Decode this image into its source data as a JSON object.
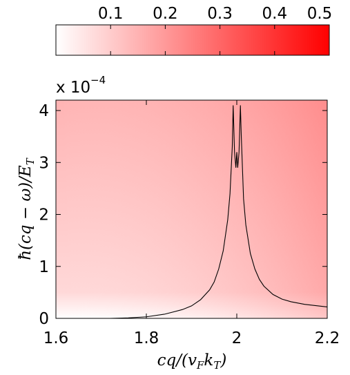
{
  "chart_data": {
    "type": "heatmap",
    "colorbar": {
      "ticks": [
        "0.1",
        "0.2",
        "0.3",
        "0.4",
        "0.5"
      ],
      "tick_values": [
        0.1,
        0.2,
        0.3,
        0.4,
        0.5
      ],
      "range": [
        0,
        0.5
      ],
      "color_low": "#ffffff",
      "color_high": "#ff0000",
      "placement": "top"
    },
    "exponent_base": "x 10",
    "exponent_power": "−4",
    "xlabel": "cq/(v_F k_T)",
    "ylabel": "ħ(cq − ω)/E_T",
    "xlim": [
      1.6,
      2.2
    ],
    "ylim": [
      0,
      4.2
    ],
    "x_ticks": [
      "1.6",
      "1.8",
      "2",
      "2.2"
    ],
    "x_tick_values": [
      1.6,
      1.8,
      2.0,
      2.2
    ],
    "y_ticks": [
      "0",
      "1",
      "2",
      "3",
      "4"
    ],
    "y_tick_values": [
      0,
      1,
      2,
      3,
      4
    ],
    "heat_field": {
      "description_values": "intensity grows with x and y",
      "corner_values": {
        "x1.6_y0": 0.0,
        "x2.2_y0": 0.1,
        "x1.6_y4.2": 0.15,
        "x2.2_y4.2": 0.27
      }
    },
    "curve": {
      "color": "#000000",
      "x": [
        1.68,
        1.72,
        1.76,
        1.8,
        1.84,
        1.88,
        1.9,
        1.92,
        1.94,
        1.95,
        1.96,
        1.97,
        1.98,
        1.985,
        1.99,
        1.992,
        1.995,
        1.998,
        2.0,
        2.002,
        2.005,
        2.008,
        2.01,
        2.015,
        2.02,
        2.03,
        2.04,
        2.05,
        2.06,
        2.08,
        2.1,
        2.12,
        2.15,
        2.18,
        2.2
      ],
      "y": [
        0.0,
        0.0,
        0.01,
        0.03,
        0.08,
        0.17,
        0.24,
        0.36,
        0.55,
        0.7,
        0.95,
        1.3,
        1.9,
        2.4,
        3.3,
        4.1,
        3.2,
        2.9,
        3.2,
        2.9,
        3.2,
        4.1,
        3.5,
        2.3,
        1.8,
        1.25,
        0.95,
        0.75,
        0.62,
        0.46,
        0.37,
        0.32,
        0.27,
        0.24,
        0.22
      ]
    }
  }
}
